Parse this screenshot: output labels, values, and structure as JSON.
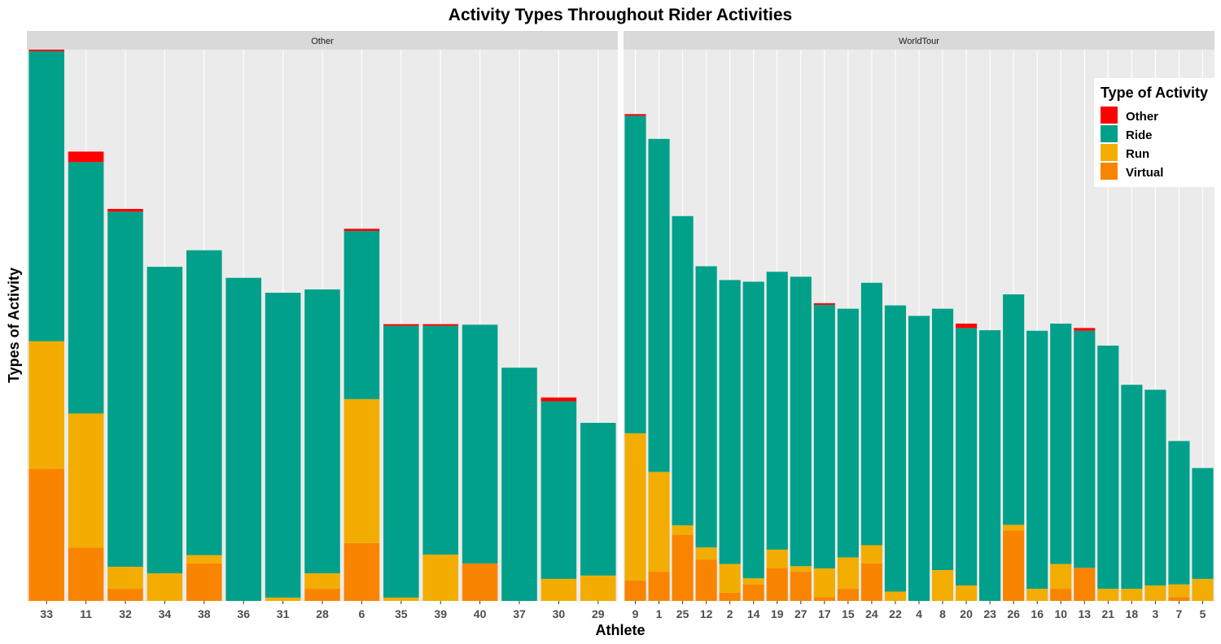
{
  "chart_data": {
    "type": "bar",
    "stacked": true,
    "faceted": true,
    "title": "Activity Types Throughout Rider Activities",
    "xlabel": "Athlete",
    "ylabel": "Types of Activity",
    "y_tick_labels_shown": false,
    "grid": true,
    "legend": {
      "title": "Type of Activity",
      "position": "top-right",
      "entries": [
        "Other",
        "Ride",
        "Run",
        "Virtual"
      ]
    },
    "colors": {
      "Other": "#ff0000",
      "Ride": "#00a08a",
      "Run": "#f2ad00",
      "Virtual": "#f98400",
      "panel_bg": "#ebebeb",
      "strip_bg": "#d9d9d9",
      "grid": "#ffffff"
    },
    "stack_order": [
      "Virtual",
      "Run",
      "Ride",
      "Other"
    ],
    "ylim": [
      0,
      100
    ],
    "facets": [
      {
        "name": "Other",
        "categories": [
          "33",
          "11",
          "32",
          "34",
          "38",
          "36",
          "31",
          "28",
          "6",
          "35",
          "39",
          "40",
          "37",
          "30",
          "29"
        ],
        "series": [
          {
            "name": "Virtual",
            "values": [
              24.0,
              9.7,
              2.2,
              0,
              6.8,
              0,
              0,
              2.2,
              10.5,
              0,
              0,
              6.8,
              0,
              0,
              0
            ]
          },
          {
            "name": "Run",
            "values": [
              23.1,
              24.3,
              4.0,
              5.0,
              1.5,
              0,
              0.6,
              2.8,
              26.1,
              0.6,
              8.4,
              0,
              0,
              4.0,
              4.6
            ]
          },
          {
            "name": "Ride",
            "values": [
              52.6,
              45.6,
              64.4,
              55.6,
              55.3,
              58.6,
              55.3,
              51.5,
              30.5,
              49.3,
              41.5,
              43.3,
              42.3,
              32.2,
              27.7
            ]
          },
          {
            "name": "Other",
            "values": [
              0.3,
              1.9,
              0.5,
              0,
              0,
              0,
              0,
              0,
              0.4,
              0.3,
              0.3,
              0,
              0,
              0.7,
              0
            ]
          }
        ]
      },
      {
        "name": "WorldTour",
        "categories": [
          "9",
          "1",
          "25",
          "12",
          "2",
          "14",
          "19",
          "27",
          "17",
          "15",
          "24",
          "22",
          "4",
          "8",
          "20",
          "23",
          "26",
          "16",
          "10",
          "13",
          "21",
          "18",
          "3",
          "7",
          "5"
        ],
        "series": [
          {
            "name": "Virtual",
            "values": [
              3.7,
              5.3,
              12.0,
              7.5,
              1.5,
              3.0,
              6.0,
              5.3,
              0.7,
              2.2,
              6.8,
              0,
              0,
              0,
              0,
              0,
              12.8,
              0,
              2.2,
              6.0,
              0,
              0,
              0,
              0.7,
              0
            ]
          },
          {
            "name": "Run",
            "values": [
              26.7,
              18.1,
              1.7,
              2.2,
              5.2,
              1.1,
              3.3,
              1.0,
              5.2,
              5.7,
              3.3,
              1.7,
              0,
              5.6,
              2.8,
              0,
              1.0,
              2.2,
              4.5,
              0,
              2.2,
              2.2,
              2.8,
              2.3,
              4.0
            ]
          },
          {
            "name": "Ride",
            "values": [
              57.6,
              60.4,
              56.1,
              51.0,
              51.5,
              53.8,
              50.4,
              52.5,
              47.8,
              45.1,
              47.6,
              51.9,
              51.7,
              47.4,
              46.7,
              49.1,
              41.8,
              46.8,
              43.6,
              43.0,
              44.1,
              37.0,
              35.5,
              26.0,
              20.1
            ]
          },
          {
            "name": "Other",
            "values": [
              0.3,
              0,
              0,
              0,
              0,
              0,
              0,
              0,
              0.3,
              0,
              0,
              0,
              0,
              0,
              0.8,
              0,
              0,
              0,
              0,
              0.5,
              0,
              0,
              0,
              0,
              0
            ]
          }
        ]
      }
    ]
  }
}
